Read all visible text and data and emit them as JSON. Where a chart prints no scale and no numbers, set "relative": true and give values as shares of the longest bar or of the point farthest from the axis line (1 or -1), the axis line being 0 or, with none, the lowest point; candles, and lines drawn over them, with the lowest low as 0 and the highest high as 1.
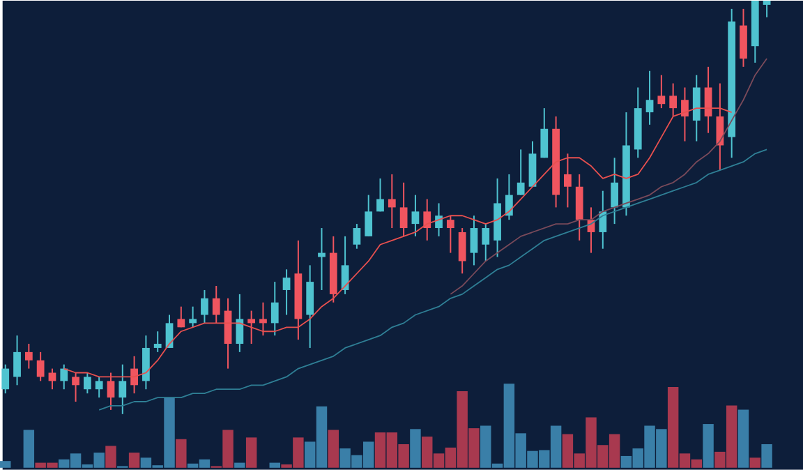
{
  "chart_data": [
    {
      "type": "candlestick",
      "relative": true,
      "categories": [
        null,
        null,
        null,
        null,
        null,
        null,
        null,
        null,
        null,
        null,
        null,
        null,
        null,
        null,
        null,
        null,
        null,
        null,
        null,
        null,
        null,
        null,
        null,
        null,
        null,
        null,
        null,
        null,
        null,
        null,
        null,
        null,
        null,
        null,
        null,
        null,
        null,
        null,
        null,
        null,
        null,
        null,
        null,
        null,
        null,
        null,
        null,
        null,
        null,
        null,
        null,
        null,
        null,
        null,
        null,
        null,
        null,
        null,
        null,
        null,
        null,
        null,
        null,
        null,
        null,
        null
      ],
      "ohlc": [
        [
          0.06,
          0.12,
          0.05,
          0.11
        ],
        [
          0.09,
          0.19,
          0.07,
          0.15
        ],
        [
          0.15,
          0.17,
          0.11,
          0.13
        ],
        [
          0.13,
          0.15,
          0.08,
          0.09
        ],
        [
          0.1,
          0.11,
          0.06,
          0.08
        ],
        [
          0.08,
          0.12,
          0.06,
          0.11
        ],
        [
          0.09,
          0.1,
          0.03,
          0.07
        ],
        [
          0.06,
          0.1,
          0.05,
          0.09
        ],
        [
          0.06,
          0.09,
          0.04,
          0.08
        ],
        [
          0.08,
          0.1,
          0.01,
          0.04
        ],
        [
          0.04,
          0.12,
          0.0,
          0.08
        ],
        [
          0.11,
          0.14,
          0.05,
          0.07
        ],
        [
          0.08,
          0.19,
          0.06,
          0.16
        ],
        [
          0.16,
          0.2,
          0.15,
          0.17
        ],
        [
          0.16,
          0.24,
          0.16,
          0.22
        ],
        [
          0.23,
          0.26,
          0.21,
          0.21
        ],
        [
          0.22,
          0.26,
          0.21,
          0.23
        ],
        [
          0.24,
          0.3,
          0.22,
          0.28
        ],
        [
          0.28,
          0.31,
          0.22,
          0.24
        ],
        [
          0.25,
          0.28,
          0.11,
          0.17
        ],
        [
          0.17,
          0.29,
          0.15,
          0.23
        ],
        [
          0.23,
          0.25,
          0.17,
          0.22
        ],
        [
          0.23,
          0.27,
          0.19,
          0.22
        ],
        [
          0.22,
          0.32,
          0.19,
          0.27
        ],
        [
          0.3,
          0.35,
          0.24,
          0.33
        ],
        [
          0.34,
          0.42,
          0.18,
          0.23
        ],
        [
          0.24,
          0.36,
          0.16,
          0.32
        ],
        [
          0.38,
          0.45,
          0.3,
          0.39
        ],
        [
          0.39,
          0.43,
          0.27,
          0.29
        ],
        [
          0.3,
          0.43,
          0.29,
          0.36
        ],
        [
          0.41,
          0.46,
          0.4,
          0.45
        ],
        [
          0.43,
          0.53,
          0.43,
          0.49
        ],
        [
          0.49,
          0.57,
          0.49,
          0.52
        ],
        [
          0.52,
          0.58,
          0.45,
          0.5
        ],
        [
          0.5,
          0.56,
          0.43,
          0.45
        ],
        [
          0.46,
          0.53,
          0.43,
          0.49
        ],
        [
          0.49,
          0.52,
          0.42,
          0.45
        ],
        [
          0.45,
          0.51,
          0.43,
          0.48
        ],
        [
          0.47,
          0.48,
          0.39,
          0.45
        ],
        [
          0.44,
          0.45,
          0.34,
          0.37
        ],
        [
          0.39,
          0.48,
          0.36,
          0.45
        ],
        [
          0.41,
          0.46,
          0.37,
          0.45
        ],
        [
          0.42,
          0.57,
          0.38,
          0.51
        ],
        [
          0.48,
          0.58,
          0.47,
          0.53
        ],
        [
          0.53,
          0.64,
          0.53,
          0.56
        ],
        [
          0.55,
          0.66,
          0.55,
          0.63
        ],
        [
          0.62,
          0.74,
          0.62,
          0.69
        ],
        [
          0.69,
          0.72,
          0.5,
          0.53
        ],
        [
          0.58,
          0.63,
          0.5,
          0.55
        ],
        [
          0.55,
          0.58,
          0.42,
          0.47
        ],
        [
          0.47,
          0.5,
          0.39,
          0.44
        ],
        [
          0.44,
          0.54,
          0.4,
          0.49
        ],
        [
          0.5,
          0.62,
          0.46,
          0.56
        ],
        [
          0.5,
          0.73,
          0.48,
          0.65
        ],
        [
          0.64,
          0.79,
          0.62,
          0.74
        ],
        [
          0.73,
          0.83,
          0.7,
          0.76
        ],
        [
          0.77,
          0.82,
          0.74,
          0.75
        ],
        [
          0.77,
          0.8,
          0.72,
          0.74
        ],
        [
          0.76,
          0.79,
          0.66,
          0.72
        ],
        [
          0.71,
          0.82,
          0.66,
          0.79
        ],
        [
          0.79,
          0.84,
          0.68,
          0.72
        ],
        [
          0.72,
          0.8,
          0.59,
          0.65
        ],
        [
          0.67,
          0.98,
          0.62,
          0.95
        ],
        [
          0.94,
          0.98,
          0.84,
          0.86
        ],
        [
          0.89,
          1.0,
          0.85,
          1.0
        ],
        [
          0.99,
          1.0,
          0.96,
          1.0
        ]
      ],
      "colors": [
        "#4fc3d0",
        "#4fc3d0",
        "#f0555f",
        "#f0555f",
        "#f0555f",
        "#4fc3d0",
        "#f0555f",
        "#4fc3d0",
        "#4fc3d0",
        "#f0555f",
        "#4fc3d0",
        "#f0555f",
        "#4fc3d0",
        "#4fc3d0",
        "#4fc3d0",
        "#f0555f",
        "#4fc3d0",
        "#4fc3d0",
        "#f0555f",
        "#f0555f",
        "#4fc3d0",
        "#f0555f",
        "#f0555f",
        "#4fc3d0",
        "#4fc3d0",
        "#f0555f",
        "#4fc3d0",
        "#4fc3d0",
        "#f0555f",
        "#4fc3d0",
        "#4fc3d0",
        "#4fc3d0",
        "#4fc3d0",
        "#f0555f",
        "#f0555f",
        "#4fc3d0",
        "#f0555f",
        "#4fc3d0",
        "#f0555f",
        "#f0555f",
        "#4fc3d0",
        "#4fc3d0",
        "#4fc3d0",
        "#4fc3d0",
        "#4fc3d0",
        "#4fc3d0",
        "#4fc3d0",
        "#f0555f",
        "#f0555f",
        "#f0555f",
        "#f0555f",
        "#4fc3d0",
        "#4fc3d0",
        "#4fc3d0",
        "#4fc3d0",
        "#4fc3d0",
        "#f0555f",
        "#f0555f",
        "#f0555f",
        "#4fc3d0",
        "#f0555f",
        "#f0555f",
        "#4fc3d0",
        "#f0555f",
        "#4fc3d0",
        "#4fc3d0"
      ],
      "series": [
        {
          "type": "line",
          "color": "#e8504f",
          "values": [
            null,
            null,
            null,
            null,
            null,
            0.11,
            0.1,
            0.1,
            0.09,
            0.09,
            0.09,
            0.09,
            0.1,
            0.13,
            0.17,
            0.2,
            0.21,
            0.22,
            0.22,
            0.22,
            0.22,
            0.21,
            0.2,
            0.2,
            0.21,
            0.21,
            0.23,
            0.26,
            0.28,
            0.31,
            0.34,
            0.37,
            0.41,
            0.42,
            0.43,
            0.44,
            0.46,
            0.47,
            0.48,
            0.48,
            0.47,
            0.46,
            0.47,
            0.49,
            0.52,
            0.55,
            0.58,
            0.61,
            0.62,
            0.62,
            0.6,
            0.57,
            0.58,
            0.57,
            0.58,
            0.62,
            0.67,
            0.72,
            0.73,
            0.74,
            0.74,
            0.74,
            0.73,
            null,
            null,
            null
          ]
        },
        {
          "type": "line",
          "color": "#2f7f95",
          "values": [
            null,
            null,
            null,
            null,
            null,
            null,
            null,
            null,
            0.01,
            0.02,
            0.02,
            0.03,
            0.03,
            0.04,
            0.04,
            0.04,
            0.05,
            0.05,
            0.06,
            0.06,
            0.06,
            0.07,
            0.07,
            0.08,
            0.09,
            0.11,
            0.12,
            0.13,
            0.14,
            0.16,
            0.17,
            0.18,
            0.19,
            0.21,
            0.22,
            0.24,
            0.25,
            0.26,
            0.28,
            0.29,
            0.31,
            0.33,
            0.35,
            0.36,
            0.38,
            0.4,
            0.42,
            0.43,
            0.44,
            0.45,
            0.46,
            0.48,
            0.49,
            0.5,
            0.51,
            0.52,
            0.53,
            0.54,
            0.55,
            0.56,
            0.58,
            0.59,
            0.6,
            0.61,
            0.63,
            0.64
          ]
        },
        {
          "type": "line",
          "color": "#7a4a5a",
          "values": [
            null,
            null,
            null,
            null,
            null,
            null,
            null,
            null,
            null,
            null,
            null,
            null,
            null,
            null,
            null,
            null,
            null,
            null,
            null,
            null,
            null,
            null,
            null,
            null,
            null,
            null,
            null,
            null,
            null,
            null,
            null,
            null,
            null,
            null,
            null,
            null,
            null,
            null,
            0.29,
            0.31,
            0.34,
            0.37,
            0.39,
            0.41,
            0.43,
            0.44,
            0.45,
            0.46,
            0.46,
            0.47,
            0.47,
            0.49,
            0.5,
            0.51,
            0.52,
            0.53,
            0.55,
            0.56,
            0.58,
            0.61,
            0.63,
            0.66,
            0.71,
            0.76,
            0.82,
            0.86
          ]
        }
      ]
    },
    {
      "type": "bar",
      "relative": true,
      "categories": [
        null,
        null,
        null,
        null,
        null,
        null,
        null,
        null,
        null,
        null,
        null,
        null,
        null,
        null,
        null,
        null,
        null,
        null,
        null,
        null,
        null,
        null,
        null,
        null,
        null,
        null,
        null,
        null,
        null,
        null,
        null,
        null,
        null,
        null,
        null,
        null,
        null,
        null,
        null,
        null,
        null,
        null,
        null,
        null,
        null,
        null,
        null,
        null,
        null,
        null,
        null,
        null,
        null,
        null,
        null,
        null,
        null,
        null,
        null,
        null,
        null,
        null,
        null,
        null,
        null,
        null
      ],
      "values": [
        0.08,
        null,
        0.45,
        0.06,
        0.06,
        0.1,
        0.17,
        0.04,
        0.18,
        0.26,
        0.02,
        0.18,
        0.12,
        0.03,
        0.84,
        0.34,
        0.05,
        0.1,
        0.02,
        0.45,
        0.06,
        0.36,
        null,
        0.06,
        0.04,
        0.36,
        0.31,
        0.73,
        0.45,
        0.23,
        0.15,
        0.31,
        0.42,
        0.42,
        0.28,
        0.46,
        0.37,
        0.17,
        0.24,
        0.91,
        0.47,
        0.5,
        0.05,
        1.0,
        0.41,
        0.2,
        0.21,
        0.5,
        0.4,
        0.17,
        0.6,
        0.27,
        0.4,
        0.14,
        0.23,
        0.5,
        0.46,
        0.96,
        0.17,
        0.1,
        0.52,
        0.19,
        0.74,
        0.69,
        0.12,
        0.28
      ],
      "colors": [
        "#3a7fa8",
        "#3a7fa8",
        "#3a7fa8",
        "#a8394f",
        "#a8394f",
        "#3a7fa8",
        "#3a7fa8",
        "#3a7fa8",
        "#3a7fa8",
        "#a8394f",
        "#3a7fa8",
        "#a8394f",
        "#3a7fa8",
        "#3a7fa8",
        "#3a7fa8",
        "#a8394f",
        "#3a7fa8",
        "#3a7fa8",
        "#a8394f",
        "#a8394f",
        "#3a7fa8",
        "#a8394f",
        "#3a7fa8",
        "#3a7fa8",
        "#a8394f",
        "#a8394f",
        "#3a7fa8",
        "#3a7fa8",
        "#a8394f",
        "#3a7fa8",
        "#3a7fa8",
        "#3a7fa8",
        "#a8394f",
        "#a8394f",
        "#a8394f",
        "#3a7fa8",
        "#a8394f",
        "#a8394f",
        "#a8394f",
        "#a8394f",
        "#a8394f",
        "#3a7fa8",
        "#3a7fa8",
        "#3a7fa8",
        "#3a7fa8",
        "#3a7fa8",
        "#3a7fa8",
        "#3a7fa8",
        "#a8394f",
        "#a8394f",
        "#a8394f",
        "#a8394f",
        "#a8394f",
        "#3a7fa8",
        "#3a7fa8",
        "#3a7fa8",
        "#3a7fa8",
        "#a8394f",
        "#a8394f",
        "#a8394f",
        "#3a7fa8",
        "#a8394f",
        "#a8394f",
        "#3a7fa8",
        "#a8394f",
        "#3a7fa8"
      ]
    }
  ]
}
